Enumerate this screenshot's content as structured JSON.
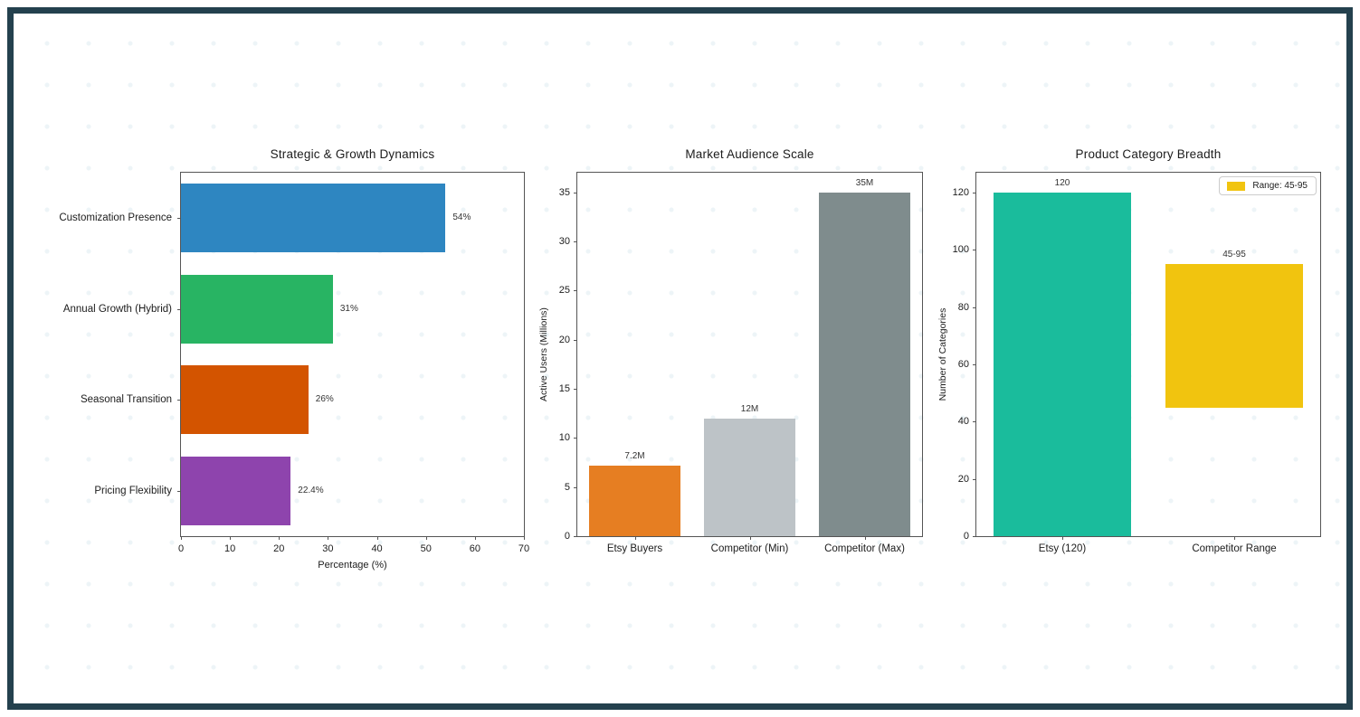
{
  "frame": {
    "border_color": "#24414e",
    "background": "#ffffff"
  },
  "chart_data": [
    {
      "type": "bar",
      "orientation": "horizontal",
      "title": "Strategic & Growth Dynamics",
      "xlabel": "Percentage (%)",
      "ylabel": "",
      "categories": [
        "Customization Presence",
        "Annual Growth (Hybrid)",
        "Seasonal Transition",
        "Pricing Flexibility"
      ],
      "values": [
        54,
        31,
        26,
        22.4
      ],
      "bar_labels": [
        "54%",
        "31%",
        "26%",
        "22.4%"
      ],
      "bar_colors": [
        "#2e86c1",
        "#28b463",
        "#d35400",
        "#8e44ad"
      ],
      "xlim": [
        0,
        70
      ],
      "xticks": [
        0,
        10,
        20,
        30,
        40,
        50,
        60,
        70
      ],
      "grid": false,
      "legend_position": "none"
    },
    {
      "type": "bar",
      "orientation": "vertical",
      "title": "Market Audience Scale",
      "xlabel": "",
      "ylabel": "Active Users (Millions)",
      "categories": [
        "Etsy Buyers",
        "Competitor (Min)",
        "Competitor (Max)"
      ],
      "values": [
        7.2,
        12,
        35
      ],
      "bar_labels": [
        "7.2M",
        "12M",
        "35M"
      ],
      "bar_colors": [
        "#e67e22",
        "#bdc3c7",
        "#7f8c8d"
      ],
      "ylim": [
        0,
        37
      ],
      "yticks": [
        0,
        5,
        10,
        15,
        20,
        25,
        30,
        35
      ],
      "grid": false,
      "legend_position": "none"
    },
    {
      "type": "bar",
      "orientation": "vertical",
      "title": "Product Category Breadth",
      "xlabel": "",
      "ylabel": "Number of Categories",
      "categories": [
        "Etsy (120)",
        "Competitor Range"
      ],
      "values": [
        [
          0,
          120
        ],
        [
          45,
          95
        ]
      ],
      "bar_labels": [
        "120",
        "45-95"
      ],
      "bar_colors": [
        "#1abc9c",
        "#f1c40f"
      ],
      "ylim": [
        0,
        127
      ],
      "yticks": [
        0,
        20,
        40,
        60,
        80,
        100,
        120
      ],
      "grid": false,
      "legend": {
        "label": "Range: 45-95",
        "color": "#f1c40f",
        "position": "upper right"
      }
    }
  ]
}
